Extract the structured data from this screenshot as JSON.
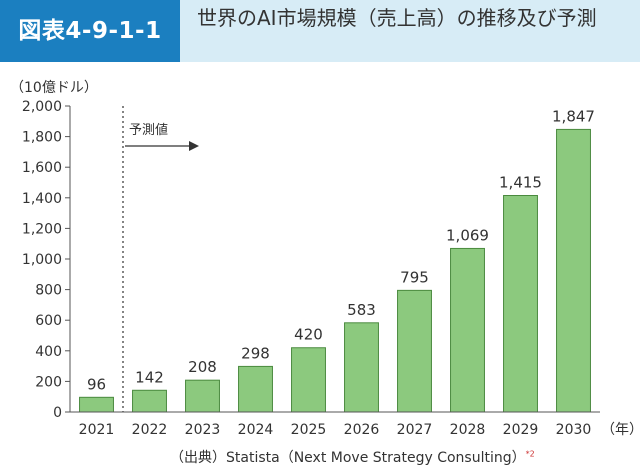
{
  "header": {
    "badge": "図表4-9-1-1",
    "title": "世界のAI市場規模（売上高）の推移及び予測"
  },
  "chart_data": {
    "type": "bar",
    "title": "世界のAI市場規模（売上高）の推移及び予測",
    "ylabel": "（10億ドル）",
    "xlabel": "",
    "x_unit": "（年）",
    "categories": [
      "2021",
      "2022",
      "2023",
      "2024",
      "2025",
      "2026",
      "2027",
      "2028",
      "2029",
      "2030"
    ],
    "values": [
      96,
      142,
      208,
      298,
      420,
      583,
      795,
      1069,
      1415,
      1847
    ],
    "value_labels": [
      "96",
      "142",
      "208",
      "298",
      "420",
      "583",
      "795",
      "1,069",
      "1,415",
      "1,847"
    ],
    "ylim": [
      0,
      2000
    ],
    "yticks": [
      0,
      200,
      400,
      600,
      800,
      1000,
      1200,
      1400,
      1600,
      1800,
      2000
    ],
    "ytick_labels": [
      "0",
      "200",
      "400",
      "600",
      "800",
      "1,000",
      "1,200",
      "1,400",
      "1,600",
      "1,800",
      "2,000"
    ],
    "grid": false,
    "legend": "none",
    "annotation": "予測値",
    "forecast_from": "2022",
    "bar_color": "#8cc97e",
    "bar_edge_color": "#4a8a3e"
  },
  "source": {
    "text": "（出典）Statista（Next Move Strategy Consulting）",
    "note": "*2"
  },
  "colors": {
    "badge": "#1b7fc0",
    "header_bg": "#d7ecf6"
  }
}
